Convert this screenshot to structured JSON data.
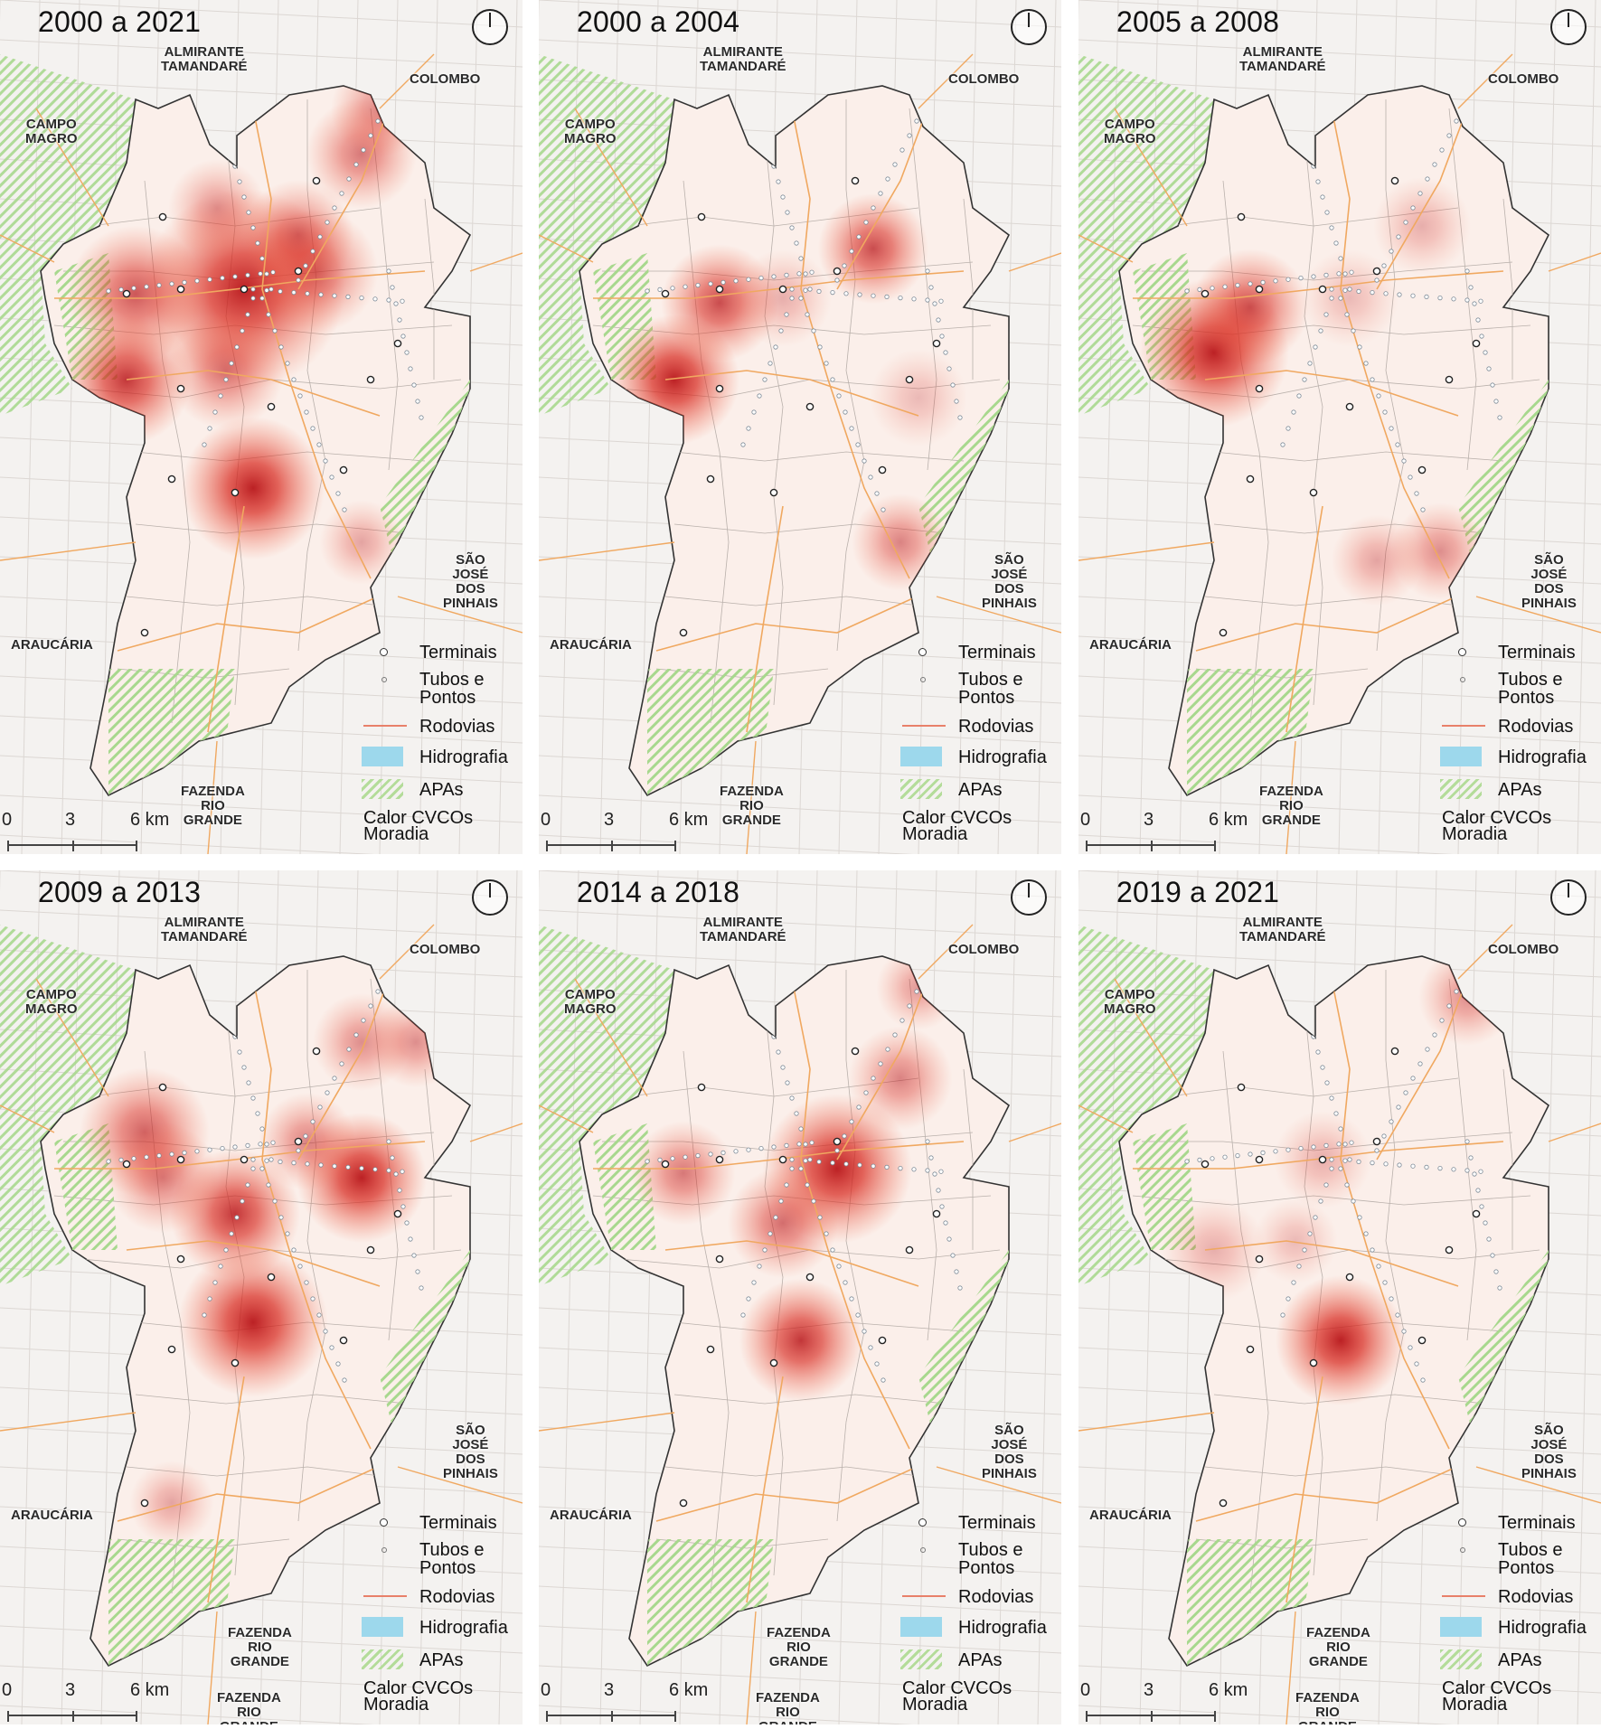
{
  "panels": [
    {
      "title": "2000 a 2021",
      "bottom_labels": [
        "FAZENDA",
        "RIO",
        "GRANDE"
      ],
      "heat": [
        {
          "x": 270,
          "y": 320,
          "r": 62,
          "a": 0.95
        },
        {
          "x": 350,
          "y": 300,
          "r": 38,
          "a": 0.6
        },
        {
          "x": 150,
          "y": 325,
          "r": 42,
          "a": 0.7
        },
        {
          "x": 140,
          "y": 420,
          "r": 40,
          "a": 0.85
        },
        {
          "x": 280,
          "y": 540,
          "r": 44,
          "a": 0.95
        },
        {
          "x": 400,
          "y": 170,
          "r": 34,
          "a": 0.55
        },
        {
          "x": 330,
          "y": 260,
          "r": 34,
          "a": 0.55
        },
        {
          "x": 250,
          "y": 410,
          "r": 36,
          "a": 0.55
        },
        {
          "x": 240,
          "y": 230,
          "r": 30,
          "a": 0.4
        },
        {
          "x": 420,
          "y": 120,
          "r": 30,
          "a": 0.45
        },
        {
          "x": 400,
          "y": 600,
          "r": 26,
          "a": 0.35
        }
      ]
    },
    {
      "title": "2000 a 2004",
      "bottom_labels": [
        "FAZENDA",
        "RIO",
        "GRANDE"
      ],
      "heat": [
        {
          "x": 150,
          "y": 420,
          "r": 40,
          "a": 0.95
        },
        {
          "x": 200,
          "y": 335,
          "r": 36,
          "a": 0.75
        },
        {
          "x": 370,
          "y": 275,
          "r": 34,
          "a": 0.75
        },
        {
          "x": 400,
          "y": 600,
          "r": 30,
          "a": 0.5
        },
        {
          "x": 270,
          "y": 330,
          "r": 30,
          "a": 0.3
        },
        {
          "x": 420,
          "y": 440,
          "r": 30,
          "a": 0.25
        }
      ]
    },
    {
      "title": "2005 a 2008",
      "bottom_labels": [
        "FAZENDA",
        "RIO",
        "GRANDE"
      ],
      "heat": [
        {
          "x": 150,
          "y": 390,
          "r": 46,
          "a": 0.95
        },
        {
          "x": 190,
          "y": 340,
          "r": 36,
          "a": 0.7
        },
        {
          "x": 400,
          "y": 610,
          "r": 30,
          "a": 0.45
        },
        {
          "x": 330,
          "y": 620,
          "r": 28,
          "a": 0.35
        },
        {
          "x": 380,
          "y": 250,
          "r": 30,
          "a": 0.3
        },
        {
          "x": 300,
          "y": 330,
          "r": 30,
          "a": 0.25
        }
      ]
    },
    {
      "title": "2009 a 2013",
      "bottom_labels": [
        "FAZENDA",
        "RIO",
        "GRANDE"
      ],
      "heat": [
        {
          "x": 400,
          "y": 340,
          "r": 40,
          "a": 0.95
        },
        {
          "x": 260,
          "y": 380,
          "r": 40,
          "a": 0.85
        },
        {
          "x": 280,
          "y": 500,
          "r": 46,
          "a": 0.95
        },
        {
          "x": 160,
          "y": 290,
          "r": 40,
          "a": 0.65
        },
        {
          "x": 180,
          "y": 340,
          "r": 34,
          "a": 0.5
        },
        {
          "x": 340,
          "y": 300,
          "r": 30,
          "a": 0.5
        },
        {
          "x": 400,
          "y": 190,
          "r": 30,
          "a": 0.45
        },
        {
          "x": 460,
          "y": 190,
          "r": 28,
          "a": 0.45
        },
        {
          "x": 190,
          "y": 700,
          "r": 26,
          "a": 0.35
        }
      ]
    },
    {
      "title": "2014 a 2018",
      "bottom_labels": [
        "FAZENDA",
        "RIO",
        "GRANDE"
      ],
      "heat": [
        {
          "x": 330,
          "y": 330,
          "r": 46,
          "a": 0.95
        },
        {
          "x": 270,
          "y": 390,
          "r": 34,
          "a": 0.6
        },
        {
          "x": 290,
          "y": 520,
          "r": 38,
          "a": 0.85
        },
        {
          "x": 160,
          "y": 335,
          "r": 32,
          "a": 0.55
        },
        {
          "x": 400,
          "y": 230,
          "r": 32,
          "a": 0.5
        },
        {
          "x": 420,
          "y": 130,
          "r": 26,
          "a": 0.4
        }
      ]
    },
    {
      "title": "2019 a 2021",
      "bottom_labels": [
        "FAZENDA",
        "RIO",
        "GRANDE"
      ],
      "heat": [
        {
          "x": 290,
          "y": 520,
          "r": 40,
          "a": 0.95
        },
        {
          "x": 430,
          "y": 140,
          "r": 30,
          "a": 0.45
        },
        {
          "x": 150,
          "y": 420,
          "r": 32,
          "a": 0.3
        },
        {
          "x": 270,
          "y": 320,
          "r": 30,
          "a": 0.3
        },
        {
          "x": 240,
          "y": 410,
          "r": 26,
          "a": 0.25
        }
      ]
    }
  ],
  "cities": {
    "almirante": [
      "ALMIRANTE",
      "TAMANDARÉ"
    ],
    "colombo": "COLOMBO",
    "campo_magro": [
      "CAMPO",
      "MAGRO"
    ],
    "sao_jose": [
      "SÃO",
      "JOSÉ",
      "DOS",
      "PINHAIS"
    ],
    "araucaria": "ARAUCÁRIA",
    "fazenda_lower": [
      "FAZENDA",
      "RIO",
      "GRANDE"
    ]
  },
  "legend": {
    "terminais": "Terminais",
    "tubos_line1": "Tubos e",
    "tubos_line2": "Pontos",
    "rodovias": "Rodovias",
    "hidrografia": "Hidrografia",
    "apas": "APAs",
    "calor_line1": "Calor CVCOs",
    "calor_line2": "Moradia"
  },
  "scale": {
    "zero": "0",
    "mid": "3",
    "end": "6 km"
  },
  "colors": {
    "heat": "#d8281e",
    "apa": "#b4dc9a",
    "road": "#f0a860",
    "hydro": "#9dd8ec",
    "city_bg": "#f5f3f1"
  }
}
